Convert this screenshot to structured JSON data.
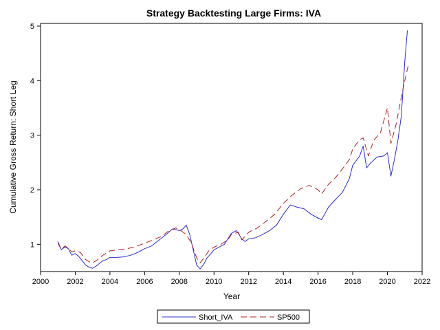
{
  "chart_data": {
    "type": "line",
    "title": "Strategy Backtesting Large Firms: IVA",
    "xlabel": "Year",
    "ylabel": "Cumulative Gross Return: Short Leg",
    "xlim": [
      2000,
      2022
    ],
    "ylim": [
      0.5,
      5.05
    ],
    "x_ticks": [
      2000,
      2002,
      2004,
      2006,
      2008,
      2010,
      2012,
      2014,
      2016,
      2018,
      2020,
      2022
    ],
    "y_ticks": [
      1,
      2,
      3,
      4,
      5
    ],
    "grid": false,
    "legend_position": "bottom",
    "series": [
      {
        "name": "Short_IVA",
        "color": "#2b2bd0",
        "style": "solid",
        "points": [
          [
            2001.0,
            1.05
          ],
          [
            2001.2,
            0.9
          ],
          [
            2001.4,
            0.95
          ],
          [
            2001.6,
            0.92
          ],
          [
            2001.8,
            0.8
          ],
          [
            2002.0,
            0.83
          ],
          [
            2002.2,
            0.78
          ],
          [
            2002.4,
            0.7
          ],
          [
            2002.6,
            0.62
          ],
          [
            2002.8,
            0.58
          ],
          [
            2003.0,
            0.56
          ],
          [
            2003.2,
            0.6
          ],
          [
            2003.4,
            0.65
          ],
          [
            2003.6,
            0.7
          ],
          [
            2003.8,
            0.72
          ],
          [
            2004.0,
            0.76
          ],
          [
            2004.4,
            0.76
          ],
          [
            2004.8,
            0.77
          ],
          [
            2005.2,
            0.8
          ],
          [
            2005.6,
            0.85
          ],
          [
            2006.0,
            0.92
          ],
          [
            2006.4,
            0.97
          ],
          [
            2006.8,
            1.07
          ],
          [
            2007.2,
            1.17
          ],
          [
            2007.6,
            1.28
          ],
          [
            2007.8,
            1.27
          ],
          [
            2008.0,
            1.25
          ],
          [
            2008.2,
            1.28
          ],
          [
            2008.4,
            1.35
          ],
          [
            2008.6,
            1.18
          ],
          [
            2008.8,
            0.9
          ],
          [
            2009.0,
            0.62
          ],
          [
            2009.2,
            0.55
          ],
          [
            2009.4,
            0.63
          ],
          [
            2009.6,
            0.75
          ],
          [
            2009.8,
            0.82
          ],
          [
            2010.0,
            0.9
          ],
          [
            2010.3,
            0.95
          ],
          [
            2010.6,
            1.0
          ],
          [
            2011.0,
            1.2
          ],
          [
            2011.3,
            1.25
          ],
          [
            2011.6,
            1.1
          ],
          [
            2011.8,
            1.05
          ],
          [
            2012.0,
            1.1
          ],
          [
            2012.4,
            1.12
          ],
          [
            2012.8,
            1.18
          ],
          [
            2013.2,
            1.25
          ],
          [
            2013.6,
            1.35
          ],
          [
            2014.0,
            1.55
          ],
          [
            2014.4,
            1.72
          ],
          [
            2014.8,
            1.68
          ],
          [
            2015.2,
            1.65
          ],
          [
            2015.6,
            1.55
          ],
          [
            2016.0,
            1.48
          ],
          [
            2016.2,
            1.45
          ],
          [
            2016.6,
            1.68
          ],
          [
            2017.0,
            1.82
          ],
          [
            2017.4,
            1.95
          ],
          [
            2017.8,
            2.2
          ],
          [
            2018.0,
            2.45
          ],
          [
            2018.4,
            2.62
          ],
          [
            2018.6,
            2.8
          ],
          [
            2018.8,
            2.4
          ],
          [
            2019.0,
            2.48
          ],
          [
            2019.4,
            2.6
          ],
          [
            2019.8,
            2.62
          ],
          [
            2020.0,
            2.68
          ],
          [
            2020.2,
            2.25
          ],
          [
            2020.4,
            2.55
          ],
          [
            2020.6,
            2.9
          ],
          [
            2020.8,
            3.35
          ],
          [
            2021.0,
            4.35
          ],
          [
            2021.15,
            4.92
          ]
        ]
      },
      {
        "name": "SP500",
        "color": "#b01e1e",
        "style": "dashed",
        "points": [
          [
            2001.0,
            1.02
          ],
          [
            2001.2,
            0.9
          ],
          [
            2001.4,
            0.97
          ],
          [
            2001.6,
            0.93
          ],
          [
            2001.8,
            0.86
          ],
          [
            2002.0,
            0.88
          ],
          [
            2002.3,
            0.85
          ],
          [
            2002.6,
            0.72
          ],
          [
            2002.8,
            0.68
          ],
          [
            2003.0,
            0.66
          ],
          [
            2003.3,
            0.72
          ],
          [
            2003.6,
            0.8
          ],
          [
            2004.0,
            0.88
          ],
          [
            2004.5,
            0.9
          ],
          [
            2005.0,
            0.92
          ],
          [
            2005.5,
            0.96
          ],
          [
            2006.0,
            1.02
          ],
          [
            2006.5,
            1.08
          ],
          [
            2007.0,
            1.15
          ],
          [
            2007.4,
            1.25
          ],
          [
            2007.8,
            1.3
          ],
          [
            2008.0,
            1.27
          ],
          [
            2008.4,
            1.18
          ],
          [
            2008.7,
            1.02
          ],
          [
            2009.0,
            0.75
          ],
          [
            2009.2,
            0.66
          ],
          [
            2009.4,
            0.74
          ],
          [
            2009.7,
            0.88
          ],
          [
            2010.0,
            0.95
          ],
          [
            2010.4,
            1.0
          ],
          [
            2010.8,
            1.08
          ],
          [
            2011.0,
            1.18
          ],
          [
            2011.4,
            1.22
          ],
          [
            2011.6,
            1.08
          ],
          [
            2012.0,
            1.22
          ],
          [
            2012.5,
            1.3
          ],
          [
            2013.0,
            1.42
          ],
          [
            2013.5,
            1.55
          ],
          [
            2014.0,
            1.75
          ],
          [
            2014.5,
            1.9
          ],
          [
            2015.0,
            2.02
          ],
          [
            2015.5,
            2.08
          ],
          [
            2016.0,
            2.0
          ],
          [
            2016.2,
            1.92
          ],
          [
            2016.6,
            2.1
          ],
          [
            2017.0,
            2.22
          ],
          [
            2017.4,
            2.38
          ],
          [
            2017.8,
            2.55
          ],
          [
            2018.0,
            2.75
          ],
          [
            2018.4,
            2.92
          ],
          [
            2018.6,
            2.95
          ],
          [
            2018.9,
            2.62
          ],
          [
            2019.2,
            2.9
          ],
          [
            2019.6,
            3.05
          ],
          [
            2020.0,
            3.5
          ],
          [
            2020.2,
            2.85
          ],
          [
            2020.5,
            3.2
          ],
          [
            2020.8,
            3.7
          ],
          [
            2021.0,
            4.0
          ],
          [
            2021.2,
            4.28
          ]
        ]
      }
    ]
  }
}
